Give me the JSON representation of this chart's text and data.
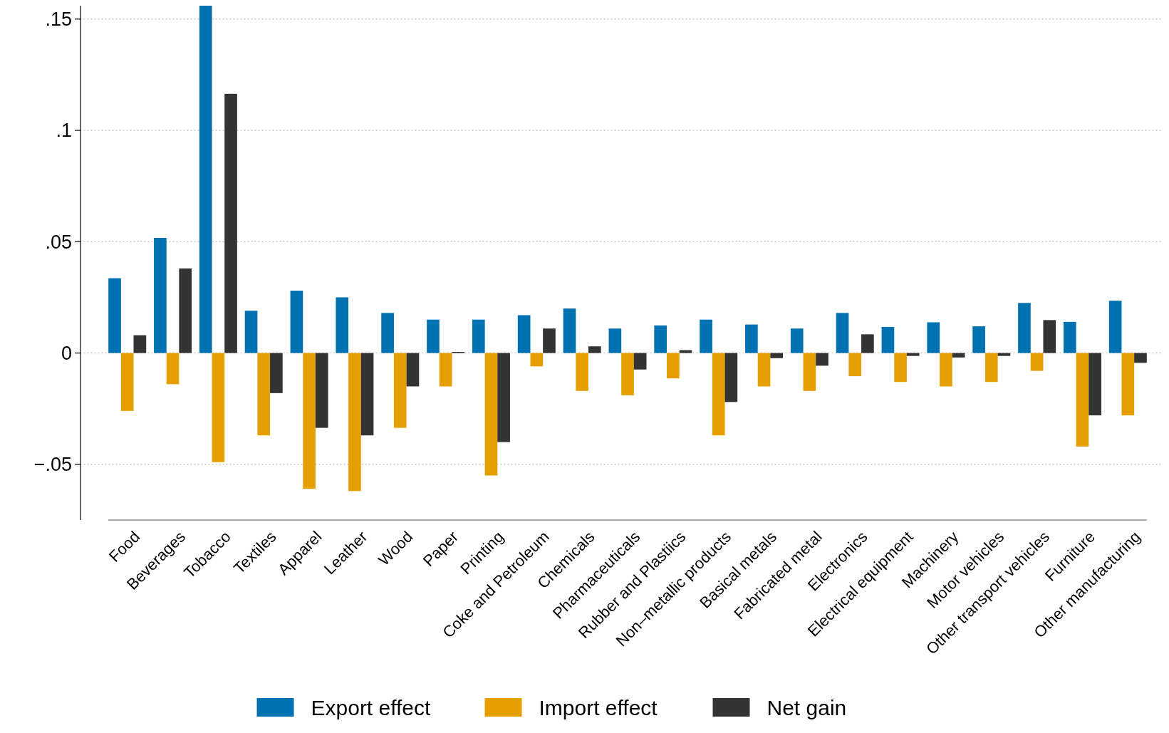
{
  "chart_data": {
    "type": "bar",
    "categories": [
      "Food",
      "Beverages",
      "Tobacco",
      "Textiles",
      "Apparel",
      "Leather",
      "Wood",
      "Paper",
      "Printing",
      "Coke and Petroleum",
      "Chemicals",
      "Pharmaceuticals",
      "Rubber and Plastiics",
      "Non–metallic products",
      "Basical metals",
      "Fabricated metal",
      "Electronics",
      "Electrical equipment",
      "Machinery",
      "Motor vehicles",
      "Other transport vehicles",
      "Furniture",
      "Other manufacturing"
    ],
    "series": [
      {
        "name": "Export effect",
        "color": "#0072b2",
        "values": [
          0.0336,
          0.0517,
          0.156,
          0.019,
          0.028,
          0.025,
          0.018,
          0.015,
          0.015,
          0.017,
          0.02,
          0.011,
          0.0124,
          0.015,
          0.0128,
          0.011,
          0.018,
          0.0117,
          0.0138,
          0.012,
          0.0225,
          0.014,
          0.0235
        ]
      },
      {
        "name": "Import effect",
        "color": "#e69f00",
        "values": [
          -0.026,
          -0.014,
          -0.049,
          -0.037,
          -0.061,
          -0.062,
          -0.0336,
          -0.015,
          -0.055,
          -0.006,
          -0.017,
          -0.019,
          -0.0114,
          -0.037,
          -0.015,
          -0.017,
          -0.0104,
          -0.013,
          -0.015,
          -0.013,
          -0.008,
          -0.042,
          -0.028
        ]
      },
      {
        "name": "Net gain",
        "color": "#333333",
        "values": [
          0.008,
          0.038,
          0.1164,
          -0.018,
          -0.0336,
          -0.037,
          -0.015,
          0.0005,
          -0.04,
          0.011,
          0.003,
          -0.0074,
          0.0013,
          -0.022,
          -0.0023,
          -0.0057,
          0.0084,
          -0.0013,
          -0.002,
          -0.0013,
          0.0148,
          -0.028,
          -0.0044
        ]
      }
    ],
    "ylim": [
      -0.075,
      0.156
    ],
    "yticks": [
      {
        "value": -0.05,
        "label": "−.05"
      },
      {
        "value": 0,
        "label": "0"
      },
      {
        "value": 0.05,
        "label": ".05"
      },
      {
        "value": 0.1,
        "label": ".1"
      },
      {
        "value": 0.15,
        "label": ".15"
      }
    ],
    "grid": "y",
    "legend": "bottom"
  }
}
